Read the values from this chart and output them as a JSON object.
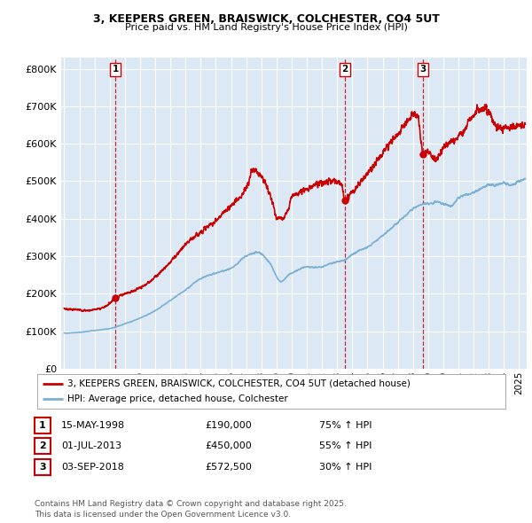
{
  "title1": "3, KEEPERS GREEN, BRAISWICK, COLCHESTER, CO4 5UT",
  "title2": "Price paid vs. HM Land Registry's House Price Index (HPI)",
  "legend_label1": "3, KEEPERS GREEN, BRAISWICK, COLCHESTER, CO4 5UT (detached house)",
  "legend_label2": "HPI: Average price, detached house, Colchester",
  "sale_color": "#cc0000",
  "hpi_color": "#7bafd4",
  "bg_color": "#dce9f5",
  "grid_color": "#ffffff",
  "vline_color": "#cc0000",
  "sale_points": [
    {
      "date": 1998.37,
      "price": 190000,
      "label": "1"
    },
    {
      "date": 2013.5,
      "price": 450000,
      "label": "2"
    },
    {
      "date": 2018.67,
      "price": 572500,
      "label": "3"
    }
  ],
  "transactions": [
    {
      "num": "1",
      "date": "15-MAY-1998",
      "price": "£190,000",
      "pct": "75% ↑ HPI"
    },
    {
      "num": "2",
      "date": "01-JUL-2013",
      "price": "£450,000",
      "pct": "55% ↑ HPI"
    },
    {
      "num": "3",
      "date": "03-SEP-2018",
      "price": "£572,500",
      "pct": "30% ↑ HPI"
    }
  ],
  "footer": "Contains HM Land Registry data © Crown copyright and database right 2025.\nThis data is licensed under the Open Government Licence v3.0.",
  "yticks": [
    0,
    100000,
    200000,
    300000,
    400000,
    500000,
    600000,
    700000,
    800000
  ],
  "yticklabels": [
    "£0",
    "£100K",
    "£200K",
    "£300K",
    "£400K",
    "£500K",
    "£600K",
    "£700K",
    "£800K"
  ],
  "ylim": [
    0,
    830000
  ],
  "xlim_start": 1994.8,
  "xlim_end": 2025.5
}
